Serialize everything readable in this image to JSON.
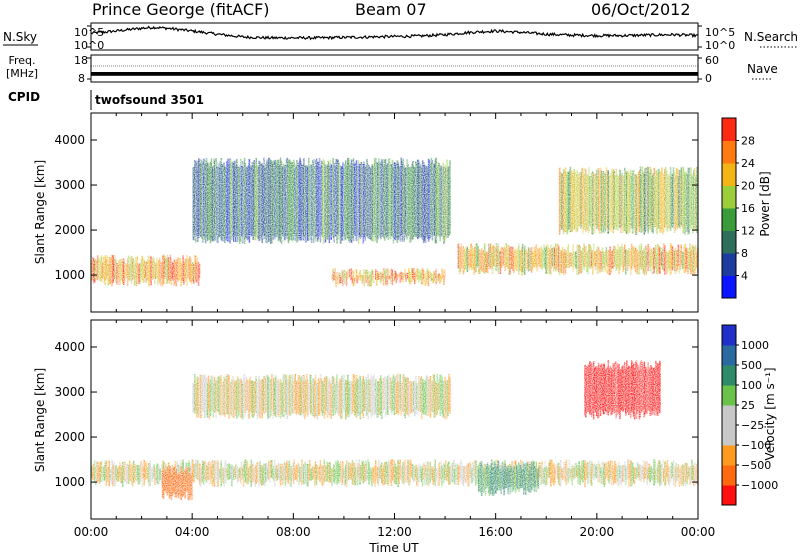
{
  "header": {
    "station": "Prince George (fitACF)",
    "beam": "Beam 07",
    "date": "06/Oct/2012"
  },
  "labels": {
    "nsky": "N.Sky",
    "nsearch": "N.Search",
    "freq_line1": "Freq.",
    "freq_line2": "[MHz]",
    "nave": "Nave",
    "cpid": "CPID",
    "cpid_value": "twofsound 3501",
    "xlabel": "Time UT"
  },
  "chart_data": [
    {
      "type": "line",
      "panel": "noise",
      "series": [
        {
          "name": "N.Sky",
          "color": "#000000",
          "x": [
            0,
            1,
            2,
            2.5,
            3,
            4,
            5,
            6,
            7,
            8,
            9,
            10,
            11,
            12,
            13,
            14,
            15,
            16,
            17,
            18,
            19,
            20,
            21,
            22,
            23,
            24
          ],
          "values": [
            3.2,
            3.7,
            4.3,
            4.5,
            4.3,
            3.7,
            3.0,
            2.4,
            2.2,
            2.2,
            2.2,
            2.3,
            2.4,
            2.5,
            2.6,
            2.9,
            3.4,
            3.7,
            3.4,
            3.0,
            2.8,
            2.7,
            2.7,
            2.8,
            2.9,
            2.7
          ]
        }
      ],
      "left_ticks": [
        "10^5",
        "10^0"
      ],
      "right_ticks": [
        "10^5",
        "10^0"
      ],
      "left_label": "N.Sky",
      "right_label": "N.Search"
    },
    {
      "type": "line",
      "panel": "frequency",
      "series": [
        {
          "name": "Freq.",
          "color": "#000000",
          "x": [
            0,
            24
          ],
          "values": [
            11.0,
            11.0
          ]
        }
      ],
      "left_ticks": [
        "18",
        "8"
      ],
      "right_ticks": [
        "60",
        "0"
      ],
      "ylim": [
        8,
        18
      ],
      "left_label": "Freq. [MHz]",
      "right_label": "Nave"
    },
    {
      "type": "heatmap",
      "panel": "power",
      "ylabel": "Slant Range [km]",
      "xlim": [
        0,
        24
      ],
      "ylim": [
        180,
        4600
      ],
      "yticks": [
        1000,
        2000,
        3000,
        4000
      ],
      "colorbar": {
        "label": "Power [dB]",
        "ticks": [
          4,
          8,
          12,
          16,
          20,
          24,
          28
        ],
        "range": [
          0,
          32
        ],
        "colors": [
          "#0a14ff",
          "#1c3ca0",
          "#2f6e5a",
          "#3a9b3a",
          "#9ccd3a",
          "#f2b515",
          "#ff7a10",
          "#ff2a14"
        ]
      },
      "echo_regions": [
        {
          "name": "near-range band",
          "t": [
            0,
            4.3
          ],
          "range": [
            850,
            1350
          ],
          "value": 24
        },
        {
          "name": "evening arc",
          "t": [
            4.0,
            14.2
          ],
          "range": [
            1800,
            3500
          ],
          "value": 10
        },
        {
          "name": "midday band",
          "t": [
            9.5,
            14.0
          ],
          "range": [
            850,
            1050
          ],
          "value": 24
        },
        {
          "name": "late band",
          "t": [
            14.5,
            24
          ],
          "range": [
            1100,
            1600
          ],
          "value": 22
        },
        {
          "name": "night arc",
          "t": [
            18.5,
            24
          ],
          "range": [
            2000,
            3300
          ],
          "value": 18
        }
      ]
    },
    {
      "type": "heatmap",
      "panel": "velocity",
      "ylabel": "Slant Range [km]",
      "xlabel": "Time UT",
      "xlim": [
        0,
        24
      ],
      "ylim": [
        180,
        4600
      ],
      "yticks": [
        1000,
        2000,
        3000,
        4000
      ],
      "xtick_labels": [
        "00:00",
        "04:00",
        "08:00",
        "12:00",
        "16:00",
        "20:00",
        "00:00"
      ],
      "colorbar": {
        "label": "Velocity [m s⁻¹]",
        "ticks": [
          "1000",
          "500",
          "100",
          "25",
          "−25",
          "−100",
          "−500",
          "−1000"
        ],
        "colors": [
          "#2030c8",
          "#2a6aa0",
          "#2f8a6a",
          "#6ac24a",
          "#c8c8c8",
          "#c8c8c8",
          "#ff9a20",
          "#ff6a10",
          "#ff1010"
        ]
      },
      "echo_regions": [
        {
          "name": "ground scatter band",
          "t": [
            0,
            24
          ],
          "range": [
            1000,
            1400
          ],
          "value": 0
        },
        {
          "name": "arc ground scatter",
          "t": [
            4.0,
            14.2
          ],
          "range": [
            2500,
            3300
          ],
          "value": 0
        },
        {
          "name": "orange patch",
          "t": [
            2.8,
            4.0
          ],
          "range": [
            700,
            1250
          ],
          "value": -300
        },
        {
          "name": "green band",
          "t": [
            15.3,
            17.7
          ],
          "range": [
            800,
            1350
          ],
          "value": 120
        },
        {
          "name": "red echoes",
          "t": [
            19.5,
            22.5
          ],
          "range": [
            2500,
            3600
          ],
          "value": -600
        }
      ]
    }
  ]
}
